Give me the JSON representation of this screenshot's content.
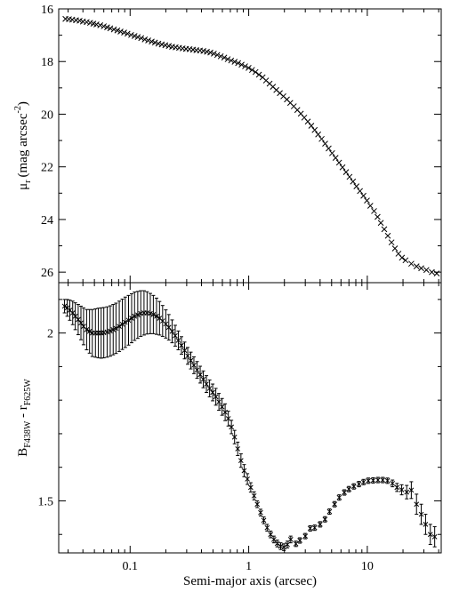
{
  "chart_data": [
    {
      "type": "scatter",
      "marker": "x",
      "x_scale": "log",
      "xlim": [
        0.025,
        42
      ],
      "ylim": [
        16,
        26.4
      ],
      "y_inverted": true,
      "ylabel_main": "μ",
      "ylabel_sub": "r",
      "ylabel_tail": "(mag arcsec",
      "ylabel_sup": "-2",
      "ylabel_close": ")",
      "yticks": [
        "16",
        "18",
        "20",
        "22",
        "24",
        "26"
      ],
      "yticks_values": [
        16,
        18,
        20,
        22,
        24,
        26
      ],
      "x": [
        0.0285,
        0.0305,
        0.0325,
        0.035,
        0.0375,
        0.04,
        0.043,
        0.046,
        0.049,
        0.052,
        0.056,
        0.06,
        0.064,
        0.068,
        0.073,
        0.078,
        0.083,
        0.089,
        0.095,
        0.102,
        0.109,
        0.116,
        0.124,
        0.133,
        0.142,
        0.152,
        0.162,
        0.173,
        0.185,
        0.198,
        0.212,
        0.226,
        0.242,
        0.259,
        0.277,
        0.296,
        0.317,
        0.339,
        0.362,
        0.388,
        0.415,
        0.444,
        0.475,
        0.508,
        0.543,
        0.581,
        0.622,
        0.665,
        0.711,
        0.761,
        0.814,
        0.871,
        0.932,
        0.997,
        1.067,
        1.141,
        1.22,
        1.31,
        1.4,
        1.5,
        1.6,
        1.71,
        1.83,
        1.96,
        2.1,
        2.24,
        2.4,
        2.57,
        2.75,
        2.94,
        3.15,
        3.37,
        3.6,
        3.85,
        4.12,
        4.41,
        4.72,
        5.05,
        5.4,
        5.78,
        6.18,
        6.62,
        7.08,
        7.57,
        8.1,
        8.67,
        9.28,
        9.93,
        10.6,
        11.4,
        12.2,
        13.0,
        13.9,
        14.9,
        16.0,
        17.1,
        18.3,
        19.6,
        21.0,
        23.5,
        26.0,
        28.5,
        31.5,
        35.0,
        38.5
      ],
      "y": [
        16.38,
        16.39,
        16.41,
        16.43,
        16.45,
        16.48,
        16.5,
        16.53,
        16.56,
        16.59,
        16.62,
        16.66,
        16.7,
        16.74,
        16.78,
        16.82,
        16.86,
        16.9,
        16.94,
        16.99,
        17.03,
        17.07,
        17.11,
        17.16,
        17.2,
        17.24,
        17.28,
        17.32,
        17.35,
        17.38,
        17.41,
        17.44,
        17.46,
        17.48,
        17.5,
        17.52,
        17.53,
        17.55,
        17.57,
        17.58,
        17.6,
        17.63,
        17.66,
        17.7,
        17.75,
        17.8,
        17.85,
        17.91,
        17.96,
        18.01,
        18.06,
        18.12,
        18.18,
        18.24,
        18.32,
        18.4,
        18.5,
        18.6,
        18.72,
        18.84,
        18.96,
        19.08,
        19.2,
        19.32,
        19.44,
        19.57,
        19.7,
        19.84,
        19.98,
        20.13,
        20.28,
        20.44,
        20.6,
        20.77,
        20.94,
        21.12,
        21.3,
        21.48,
        21.66,
        21.84,
        22.02,
        22.2,
        22.38,
        22.56,
        22.74,
        22.92,
        23.1,
        23.28,
        23.48,
        23.68,
        23.9,
        24.13,
        24.37,
        24.62,
        24.87,
        25.1,
        25.3,
        25.45,
        25.55,
        25.68,
        25.78,
        25.85,
        25.92,
        26.0,
        26.05
      ]
    },
    {
      "type": "scatter",
      "marker": "x",
      "error_bars": true,
      "x_scale": "log",
      "xlim": [
        0.025,
        42
      ],
      "ylim": [
        1.345,
        2.15
      ],
      "xlabel": "Semi-major axis (arcsec)",
      "xticks": [
        "0.1",
        "1",
        "10"
      ],
      "xticks_values": [
        0.1,
        1,
        10
      ],
      "ylabel_main": "B",
      "ylabel_sub1": "F438W",
      "ylabel_dash": " - r",
      "ylabel_sub2": "F625W",
      "yticks": [
        "1.5",
        "2"
      ],
      "yticks_values": [
        1.5,
        2
      ],
      "x": [
        0.028,
        0.0295,
        0.031,
        0.0328,
        0.0345,
        0.0365,
        0.0385,
        0.0405,
        0.043,
        0.0455,
        0.048,
        0.051,
        0.054,
        0.057,
        0.06,
        0.064,
        0.068,
        0.072,
        0.076,
        0.081,
        0.086,
        0.091,
        0.097,
        0.103,
        0.109,
        0.116,
        0.123,
        0.131,
        0.139,
        0.148,
        0.157,
        0.167,
        0.177,
        0.188,
        0.2,
        0.212,
        0.226,
        0.24,
        0.255,
        0.271,
        0.288,
        0.306,
        0.325,
        0.345,
        0.367,
        0.39,
        0.414,
        0.44,
        0.468,
        0.497,
        0.528,
        0.561,
        0.596,
        0.633,
        0.673,
        0.715,
        0.76,
        0.808,
        0.86,
        0.915,
        0.975,
        1.04,
        1.11,
        1.18,
        1.26,
        1.34,
        1.43,
        1.53,
        1.63,
        1.74,
        1.86,
        1.98,
        2.12,
        2.26,
        2.5,
        2.7,
        3.0,
        3.3,
        3.6,
        4.0,
        4.4,
        4.8,
        5.3,
        5.8,
        6.4,
        7.0,
        7.7,
        8.5,
        9.3,
        10.2,
        11.2,
        12.3,
        13.5,
        14.8,
        16.3,
        17.8,
        19.5,
        21.5,
        23.5,
        26.0,
        28.5,
        31.0,
        34.0,
        37.0
      ],
      "y": [
        2.08,
        2.075,
        2.068,
        2.06,
        2.05,
        2.04,
        2.03,
        2.02,
        2.01,
        2.005,
        2.0,
        2.0,
        2.0,
        2.0,
        2.001,
        2.003,
        2.006,
        2.01,
        2.014,
        2.02,
        2.026,
        2.032,
        2.038,
        2.044,
        2.05,
        2.054,
        2.058,
        2.06,
        2.06,
        2.058,
        2.055,
        2.05,
        2.044,
        2.036,
        2.027,
        2.017,
        2.005,
        1.992,
        1.978,
        1.963,
        1.948,
        1.932,
        1.918,
        1.904,
        1.89,
        1.876,
        1.862,
        1.848,
        1.835,
        1.823,
        1.81,
        1.795,
        1.78,
        1.764,
        1.745,
        1.72,
        1.69,
        1.655,
        1.62,
        1.59,
        1.565,
        1.54,
        1.515,
        1.49,
        1.465,
        1.442,
        1.42,
        1.4,
        1.385,
        1.373,
        1.365,
        1.362,
        1.37,
        1.385,
        1.372,
        1.382,
        1.395,
        1.418,
        1.42,
        1.43,
        1.445,
        1.468,
        1.49,
        1.51,
        1.525,
        1.535,
        1.543,
        1.55,
        1.556,
        1.56,
        1.561,
        1.562,
        1.562,
        1.56,
        1.552,
        1.54,
        1.533,
        1.526,
        1.532,
        1.49,
        1.46,
        1.43,
        1.4,
        1.393
      ],
      "err": [
        0.02,
        0.025,
        0.03,
        0.035,
        0.04,
        0.045,
        0.05,
        0.055,
        0.06,
        0.065,
        0.07,
        0.072,
        0.074,
        0.075,
        0.075,
        0.075,
        0.075,
        0.075,
        0.075,
        0.075,
        0.075,
        0.075,
        0.074,
        0.073,
        0.072,
        0.07,
        0.068,
        0.066,
        0.063,
        0.06,
        0.057,
        0.054,
        0.05,
        0.046,
        0.042,
        0.038,
        0.034,
        0.031,
        0.028,
        0.026,
        0.025,
        0.025,
        0.025,
        0.025,
        0.025,
        0.025,
        0.025,
        0.025,
        0.025,
        0.025,
        0.025,
        0.025,
        0.025,
        0.025,
        0.022,
        0.02,
        0.02,
        0.02,
        0.02,
        0.018,
        0.016,
        0.014,
        0.012,
        0.01,
        0.01,
        0.01,
        0.01,
        0.01,
        0.01,
        0.01,
        0.01,
        0.01,
        0.01,
        0.01,
        0.008,
        0.008,
        0.008,
        0.008,
        0.008,
        0.008,
        0.008,
        0.008,
        0.008,
        0.008,
        0.008,
        0.008,
        0.008,
        0.008,
        0.008,
        0.008,
        0.008,
        0.008,
        0.008,
        0.008,
        0.01,
        0.012,
        0.015,
        0.02,
        0.025,
        0.03,
        0.03,
        0.03,
        0.03,
        0.03
      ]
    }
  ]
}
